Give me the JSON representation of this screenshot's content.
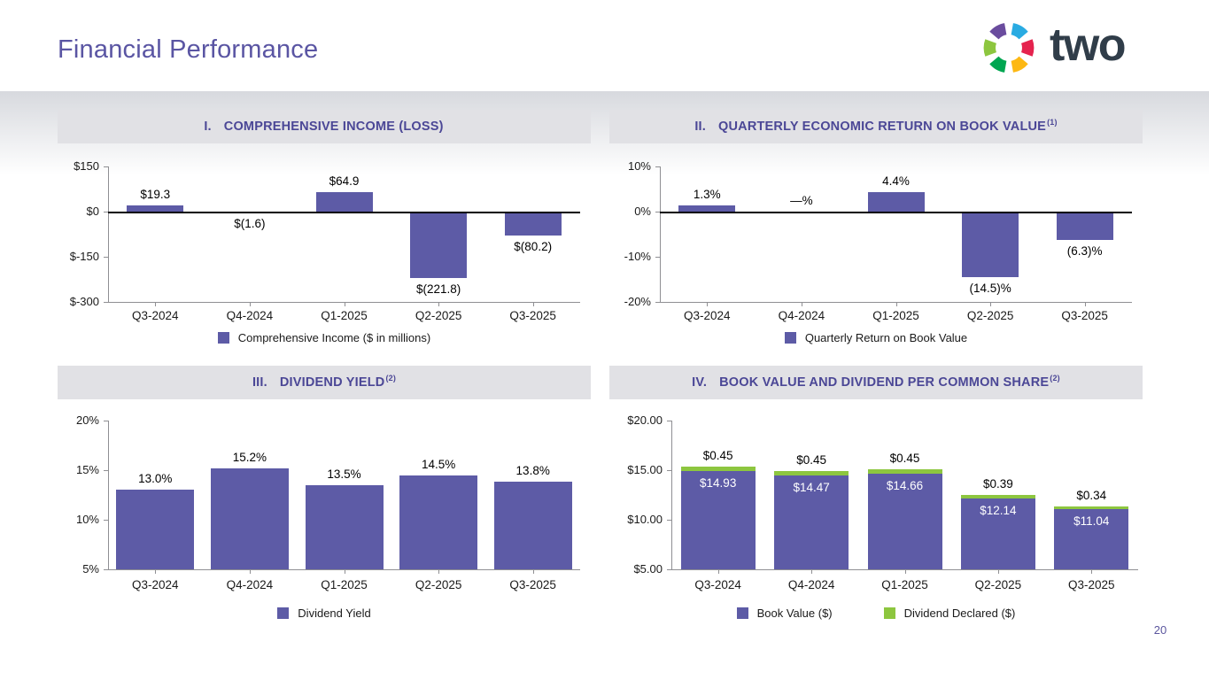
{
  "header": {
    "title": "Financial Performance",
    "logo_text": "two"
  },
  "footer": {
    "page_number": "20"
  },
  "colors": {
    "accent_purple": "#5a55a3",
    "bar_purple": "#5d5ba6",
    "dividend_green": "#8dc63f",
    "panel_header_bg": "#e1e1e5",
    "panel_header_text": "#4b4796"
  },
  "logo": {
    "segment_colors": [
      "#6a4c9e",
      "#29abe2",
      "#e5234e",
      "#fdb813",
      "#00a651",
      "#8dc63f"
    ]
  },
  "chart_data": [
    {
      "type": "bar",
      "id": "comprehensive-income-loss",
      "numeral": "I.",
      "title": "COMPREHENSIVE INCOME (LOSS)",
      "superscript": "",
      "categories": [
        "Q3-2024",
        "Q4-2024",
        "Q1-2025",
        "Q2-2025",
        "Q3-2025"
      ],
      "values": [
        19.3,
        -1.6,
        64.9,
        -221.8,
        -80.2
      ],
      "value_labels": [
        "$19.3",
        "$(1.6)",
        "$64.9",
        "$(221.8)",
        "$(80.2)"
      ],
      "yticks": [
        {
          "v": 150,
          "label": "$150"
        },
        {
          "v": 0,
          "label": "$0"
        },
        {
          "v": -150,
          "label": "$-150"
        },
        {
          "v": -300,
          "label": "$-300"
        }
      ],
      "ylim": [
        -300,
        150
      ],
      "baseline": 0,
      "grid": false,
      "legend": [
        {
          "label": "Comprehensive Income ($ in millions)",
          "color": "#5d5ba6"
        }
      ]
    },
    {
      "type": "bar",
      "id": "quarterly-economic-return-on-book-value",
      "numeral": "II.",
      "title": "QUARTERLY ECONOMIC RETURN ON BOOK VALUE",
      "superscript": "(1)",
      "categories": [
        "Q3-2024",
        "Q4-2024",
        "Q1-2025",
        "Q2-2025",
        "Q3-2025"
      ],
      "values": [
        1.3,
        0,
        4.4,
        -14.5,
        -6.3
      ],
      "value_labels": [
        "1.3%",
        "—%",
        "4.4%",
        "(14.5)%",
        "(6.3)%"
      ],
      "yticks": [
        {
          "v": 10,
          "label": "10%"
        },
        {
          "v": 0,
          "label": "0%"
        },
        {
          "v": -10,
          "label": "-10%"
        },
        {
          "v": -20,
          "label": "-20%"
        }
      ],
      "ylim": [
        -20,
        10
      ],
      "baseline": 0,
      "grid": false,
      "legend": [
        {
          "label": "Quarterly Return on Book Value",
          "color": "#5d5ba6"
        }
      ]
    },
    {
      "type": "bar",
      "id": "dividend-yield",
      "numeral": "III.",
      "title": "DIVIDEND YIELD",
      "superscript": "(2)",
      "categories": [
        "Q3-2024",
        "Q4-2024",
        "Q1-2025",
        "Q2-2025",
        "Q3-2025"
      ],
      "values": [
        13.0,
        15.2,
        13.5,
        14.5,
        13.8
      ],
      "value_labels": [
        "13.0%",
        "15.2%",
        "13.5%",
        "14.5%",
        "13.8%"
      ],
      "yticks": [
        {
          "v": 20,
          "label": "20%"
        },
        {
          "v": 15,
          "label": "15%"
        },
        {
          "v": 10,
          "label": "10%"
        },
        {
          "v": 5,
          "label": "5%"
        }
      ],
      "ylim": [
        5,
        20
      ],
      "baseline": 5,
      "grid": false,
      "legend": [
        {
          "label": "Dividend Yield",
          "color": "#5d5ba6"
        }
      ]
    },
    {
      "type": "stacked-bar",
      "id": "book-value-and-dividend-per-common-share",
      "numeral": "IV.",
      "title": "BOOK VALUE AND DIVIDEND PER COMMON SHARE",
      "superscript": "(2)",
      "categories": [
        "Q3-2024",
        "Q4-2024",
        "Q1-2025",
        "Q2-2025",
        "Q3-2025"
      ],
      "series": [
        {
          "name": "Book Value ($)",
          "color": "#5d5ba6",
          "values": [
            14.93,
            14.47,
            14.66,
            12.14,
            11.04
          ],
          "value_labels": [
            "$14.93",
            "$14.47",
            "$14.66",
            "$12.14",
            "$11.04"
          ]
        },
        {
          "name": "Dividend Declared ($)",
          "color": "#8dc63f",
          "values": [
            0.45,
            0.45,
            0.45,
            0.39,
            0.34
          ],
          "value_labels": [
            "$0.45",
            "$0.45",
            "$0.45",
            "$0.39",
            "$0.34"
          ]
        }
      ],
      "yticks": [
        {
          "v": 20,
          "label": "$20.00"
        },
        {
          "v": 15,
          "label": "$15.00"
        },
        {
          "v": 10,
          "label": "$10.00"
        },
        {
          "v": 5,
          "label": "$5.00"
        }
      ],
      "ylim": [
        5,
        20
      ],
      "baseline": 5,
      "grid": false,
      "legend": [
        {
          "label": "Book Value ($)",
          "color": "#5d5ba6"
        },
        {
          "label": "Dividend Declared ($)",
          "color": "#8dc63f"
        }
      ]
    }
  ]
}
